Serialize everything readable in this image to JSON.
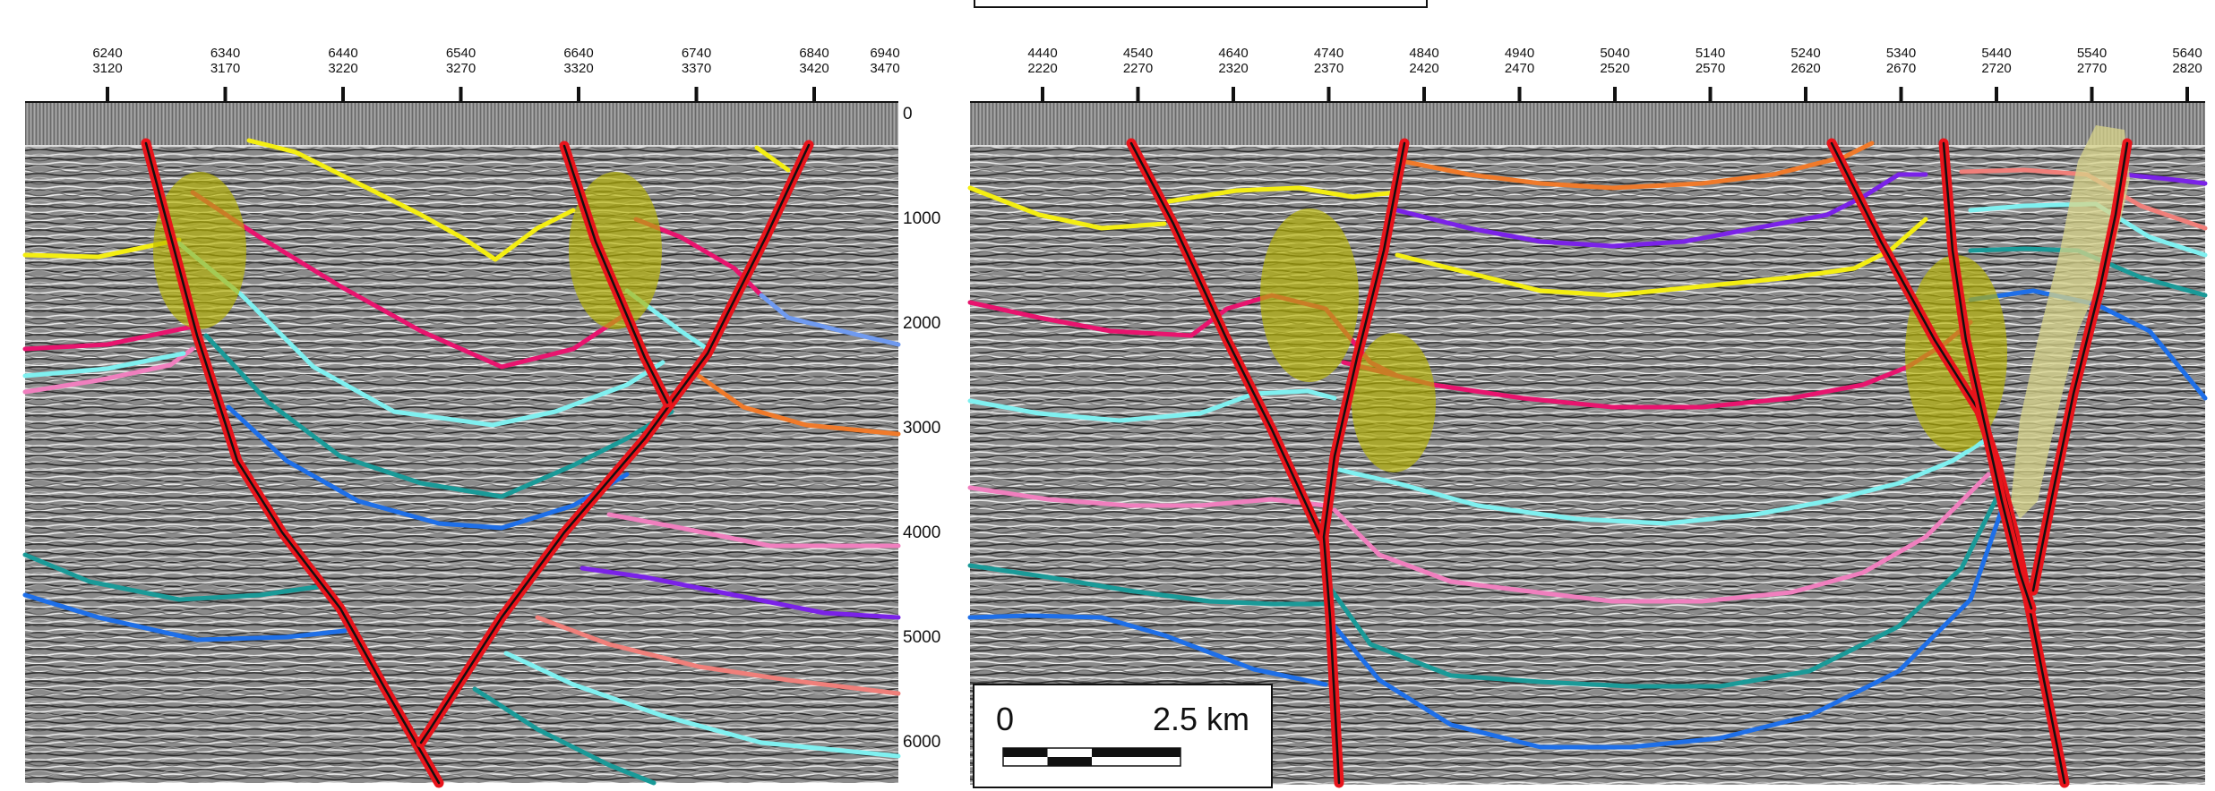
{
  "left_panel": {
    "top_axis": [
      {
        "cdp": "6240",
        "shot": "3120"
      },
      {
        "cdp": "6340",
        "shot": "3170"
      },
      {
        "cdp": "6440",
        "shot": "3220"
      },
      {
        "cdp": "6540",
        "shot": "3270"
      },
      {
        "cdp": "6640",
        "shot": "3320"
      },
      {
        "cdp": "6740",
        "shot": "3370"
      },
      {
        "cdp": "6840",
        "shot": "3420"
      },
      {
        "cdp": "6940",
        "shot": "3470"
      }
    ],
    "depth_labels": [
      "0",
      "1000",
      "2000",
      "3000",
      "4000",
      "5000",
      "6000"
    ]
  },
  "right_panel": {
    "top_axis": [
      {
        "cdp": "4440",
        "shot": "2220"
      },
      {
        "cdp": "4540",
        "shot": "2270"
      },
      {
        "cdp": "4640",
        "shot": "2320"
      },
      {
        "cdp": "4740",
        "shot": "2370"
      },
      {
        "cdp": "4840",
        "shot": "2420"
      },
      {
        "cdp": "4940",
        "shot": "2470"
      },
      {
        "cdp": "5040",
        "shot": "2520"
      },
      {
        "cdp": "5140",
        "shot": "2570"
      },
      {
        "cdp": "5240",
        "shot": "2620"
      },
      {
        "cdp": "5340",
        "shot": "2670"
      },
      {
        "cdp": "5440",
        "shot": "2720"
      },
      {
        "cdp": "5540",
        "shot": "2770"
      },
      {
        "cdp": "5640",
        "shot": "2820"
      }
    ]
  },
  "scale_bar": {
    "start_label": "0",
    "end_label": "2.5 km"
  },
  "colors": {
    "fault": "#e8141b",
    "fault_core": "#111111",
    "highlight": "#b9b500",
    "highlight_pale": "#d8d48a",
    "horizons": {
      "yellow": "#f4ee12",
      "magenta": "#e8146e",
      "cyan": "#7ff0f0",
      "teal": "#1a9a98",
      "blue": "#1e6fe8",
      "pink": "#f07fbe",
      "orange": "#f07a2a",
      "violet": "#7a22e8",
      "salmon": "#f07f7a",
      "light_blue": "#6f9af0"
    }
  }
}
